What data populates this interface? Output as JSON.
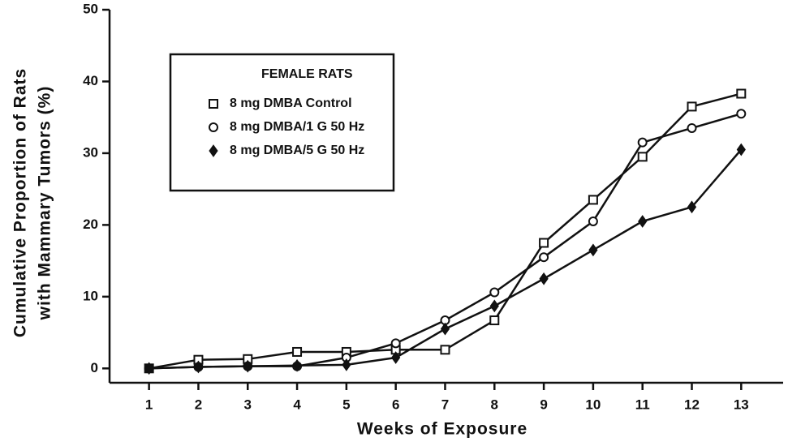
{
  "chart_data": {
    "type": "line",
    "xlabel": "Weeks of Exposure",
    "ylabel": [
      "Cumulative Proportion of Rats",
      "with Mammary Tumors (%)"
    ],
    "legend_title": "FEMALE RATS",
    "x": [
      1,
      2,
      3,
      4,
      5,
      6,
      7,
      8,
      9,
      10,
      11,
      12,
      13
    ],
    "xlim": [
      0.2,
      13.85
    ],
    "xticks": [
      1,
      2,
      3,
      4,
      5,
      6,
      7,
      8,
      9,
      10,
      11,
      12,
      13
    ],
    "ylim": [
      -2,
      50
    ],
    "yticks": [
      0,
      10,
      20,
      30,
      40,
      50
    ],
    "legend": "upper left",
    "series": [
      {
        "name": "8 mg DMBA Control",
        "color": "#111111",
        "marker": "square",
        "values": [
          0,
          1.2,
          1.3,
          2.3,
          2.3,
          2.6,
          2.6,
          6.7,
          17.5,
          23.5,
          29.5,
          36.5,
          38.3
        ]
      },
      {
        "name": "8 mg DMBA/1 G 50 Hz",
        "color": "#111111",
        "marker": "circle",
        "values": [
          0,
          0.2,
          0.3,
          0.3,
          1.5,
          3.5,
          6.7,
          10.6,
          15.5,
          20.5,
          31.5,
          33.5,
          35.5
        ]
      },
      {
        "name": "8 mg DMBA/5 G 50 Hz",
        "color": "#111111",
        "marker": "diamond",
        "values": [
          0,
          0.2,
          0.3,
          0.4,
          0.5,
          1.5,
          5.5,
          8.7,
          12.5,
          16.5,
          20.5,
          22.5,
          30.5
        ]
      }
    ]
  }
}
